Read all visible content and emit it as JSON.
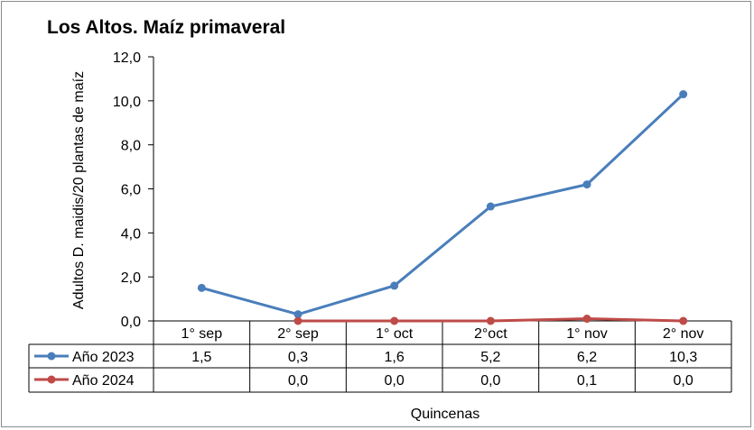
{
  "chart_data": {
    "type": "line",
    "title": "Los Altos. Maíz primaveral",
    "xlabel": "Quincenas",
    "ylabel": "Adultos D. maidis/20 plantas de maíz",
    "ylim": [
      0,
      12
    ],
    "yticks": [
      "0,0",
      "2,0",
      "4,0",
      "6,0",
      "8,0",
      "10,0",
      "12,0"
    ],
    "categories": [
      "1° sep",
      "2° sep",
      "1° oct",
      "2°oct",
      "1° nov",
      "2° nov"
    ],
    "legend": "data-table",
    "grid": false,
    "series": [
      {
        "name": "Año 2023",
        "color": "#4a7ebb",
        "values": [
          1.5,
          0.3,
          1.6,
          5.2,
          6.2,
          10.3
        ],
        "labels": [
          "1,5",
          "0,3",
          "1,6",
          "5,2",
          "6,2",
          "10,3"
        ]
      },
      {
        "name": "Año 2024",
        "color": "#be4b48",
        "values": [
          null,
          0.0,
          0.0,
          0.0,
          0.1,
          0.0
        ],
        "labels": [
          "",
          "0,0",
          "0,0",
          "0,0",
          "0,1",
          "0,0"
        ]
      }
    ]
  }
}
